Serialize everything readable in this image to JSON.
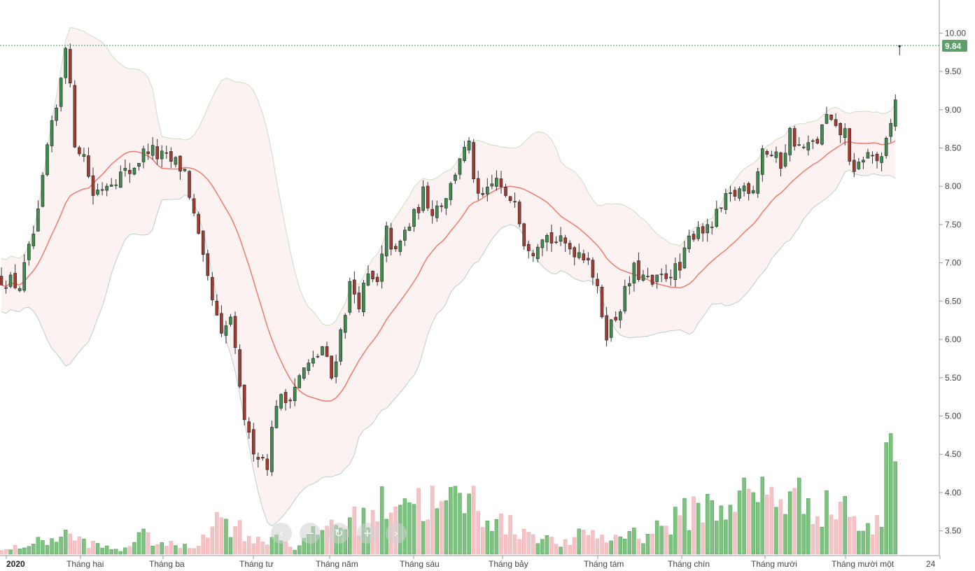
{
  "chart_data": {
    "type": "candlestick",
    "ylim": [
      3.25,
      10.25
    ],
    "y_ticks": [
      "10.00",
      "9.50",
      "9.00",
      "8.50",
      "8.00",
      "7.50",
      "7.00",
      "6.50",
      "6.00",
      "5.50",
      "5.00",
      "4.50",
      "4.00",
      "3.50"
    ],
    "x_labels": [
      "2020",
      "Tháng hai",
      "Tháng ba",
      "Tháng tư",
      "Tháng năm",
      "Tháng sáu",
      "Tháng bảy",
      "Tháng tám",
      "Tháng chín",
      "Tháng mười",
      "Tháng mười một",
      "24"
    ],
    "last_price": "9.84",
    "last_price_value": 9.84,
    "colors": {
      "up": "#3e8c4e",
      "down": "#a63a2e",
      "vol_up": "#7cc47e",
      "vol_down": "#f4c3c6",
      "ma_line": "#f0796e",
      "band_upper": "#c9dfc1",
      "band_lower": "#b9cfcc",
      "band_fill": "#fdf2f2",
      "price_tag": "#5d9e6a"
    },
    "price_keypoints": [
      [
        0,
        6.8
      ],
      [
        4,
        6.7
      ],
      [
        8,
        7.6
      ],
      [
        10,
        8.5
      ],
      [
        12,
        9.0
      ],
      [
        14,
        9.9
      ],
      [
        16,
        8.6
      ],
      [
        18,
        8.4
      ],
      [
        20,
        7.9
      ],
      [
        24,
        8.1
      ],
      [
        28,
        8.2
      ],
      [
        32,
        8.5
      ],
      [
        34,
        8.4
      ],
      [
        38,
        8.3
      ],
      [
        40,
        8.2
      ],
      [
        42,
        7.6
      ],
      [
        44,
        7.0
      ],
      [
        46,
        6.5
      ],
      [
        48,
        6.0
      ],
      [
        50,
        6.3
      ],
      [
        52,
        5.3
      ],
      [
        54,
        4.7
      ],
      [
        56,
        4.5
      ],
      [
        58,
        4.4
      ],
      [
        60,
        5.2
      ],
      [
        62,
        5.2
      ],
      [
        64,
        5.4
      ],
      [
        66,
        5.6
      ],
      [
        68,
        5.7
      ],
      [
        70,
        5.9
      ],
      [
        72,
        5.5
      ],
      [
        74,
        6.1
      ],
      [
        76,
        6.7
      ],
      [
        78,
        6.5
      ],
      [
        80,
        6.8
      ],
      [
        82,
        6.7
      ],
      [
        84,
        7.4
      ],
      [
        86,
        7.1
      ],
      [
        88,
        7.4
      ],
      [
        90,
        7.6
      ],
      [
        92,
        7.9
      ],
      [
        94,
        7.7
      ],
      [
        96,
        7.8
      ],
      [
        98,
        8.0
      ],
      [
        100,
        8.4
      ],
      [
        102,
        8.5
      ],
      [
        104,
        7.8
      ],
      [
        106,
        7.9
      ],
      [
        108,
        8.1
      ],
      [
        110,
        7.8
      ],
      [
        112,
        7.9
      ],
      [
        114,
        7.3
      ],
      [
        116,
        7.2
      ],
      [
        118,
        7.4
      ],
      [
        120,
        7.3
      ],
      [
        124,
        7.2
      ],
      [
        128,
        7.1
      ],
      [
        130,
        6.6
      ],
      [
        132,
        6.1
      ],
      [
        134,
        6.3
      ],
      [
        136,
        6.6
      ],
      [
        138,
        6.9
      ],
      [
        140,
        6.8
      ],
      [
        142,
        6.7
      ],
      [
        144,
        6.8
      ],
      [
        146,
        6.9
      ],
      [
        148,
        6.9
      ],
      [
        150,
        7.3
      ],
      [
        152,
        7.5
      ],
      [
        154,
        7.4
      ],
      [
        156,
        7.6
      ],
      [
        158,
        7.8
      ],
      [
        160,
        7.9
      ],
      [
        162,
        8.0
      ],
      [
        164,
        8.0
      ],
      [
        166,
        8.5
      ],
      [
        168,
        8.4
      ],
      [
        170,
        8.3
      ],
      [
        172,
        8.7
      ],
      [
        174,
        8.5
      ],
      [
        176,
        8.5
      ],
      [
        178,
        8.6
      ],
      [
        180,
        8.9
      ],
      [
        182,
        8.7
      ],
      [
        184,
        8.7
      ],
      [
        186,
        8.1
      ],
      [
        188,
        8.4
      ],
      [
        190,
        8.4
      ],
      [
        192,
        8.3
      ],
      [
        194,
        8.8
      ],
      [
        195,
        9.15
      ]
    ],
    "volume_keypoints": [
      [
        0,
        0.05
      ],
      [
        10,
        0.22
      ],
      [
        14,
        0.3
      ],
      [
        20,
        0.15
      ],
      [
        26,
        0.05
      ],
      [
        30,
        0.3
      ],
      [
        36,
        0.15
      ],
      [
        42,
        0.1
      ],
      [
        46,
        0.55
      ],
      [
        50,
        0.5
      ],
      [
        56,
        0.2
      ],
      [
        60,
        0.3
      ],
      [
        64,
        0.1
      ],
      [
        68,
        0.3
      ],
      [
        72,
        0.5
      ],
      [
        76,
        0.5
      ],
      [
        80,
        0.6
      ],
      [
        84,
        0.8
      ],
      [
        86,
        1.0
      ],
      [
        90,
        0.85
      ],
      [
        94,
        0.8
      ],
      [
        96,
        0.7
      ],
      [
        100,
        0.9
      ],
      [
        104,
        0.8
      ],
      [
        108,
        0.5
      ],
      [
        112,
        0.4
      ],
      [
        116,
        0.35
      ],
      [
        120,
        0.2
      ],
      [
        124,
        0.15
      ],
      [
        128,
        0.4
      ],
      [
        132,
        0.2
      ],
      [
        136,
        0.35
      ],
      [
        140,
        0.3
      ],
      [
        144,
        0.45
      ],
      [
        148,
        0.55
      ],
      [
        152,
        0.8
      ],
      [
        156,
        0.7
      ],
      [
        160,
        0.9
      ],
      [
        164,
        0.9
      ],
      [
        168,
        1.0
      ],
      [
        172,
        0.85
      ],
      [
        176,
        0.9
      ],
      [
        180,
        0.7
      ],
      [
        184,
        0.85
      ],
      [
        188,
        0.3
      ],
      [
        192,
        0.55
      ],
      [
        193,
        2.15
      ],
      [
        194,
        2.15
      ]
    ],
    "candle_count": 196,
    "ma_period": 20
  },
  "navigation": {
    "back_glyph": "‹",
    "zoom_out_glyph": "−",
    "reset_glyph": "↻",
    "zoom_in_glyph": "+",
    "forward_glyph": "›"
  }
}
